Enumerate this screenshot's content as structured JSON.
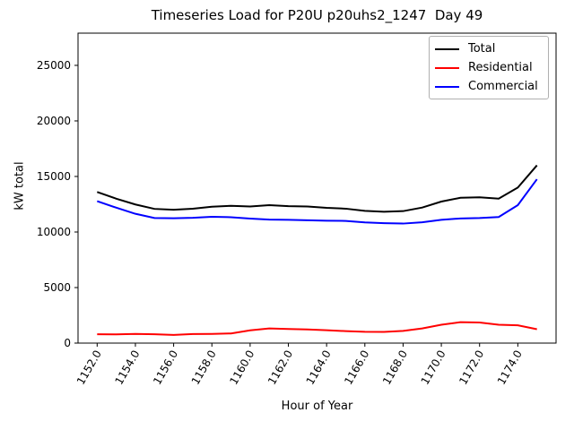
{
  "chart_data": {
    "type": "line",
    "title": "Timeseries Load for P20U p20uhs2_1247  Day 49",
    "xlabel": "Hour of Year",
    "ylabel": "kW total",
    "xlim": [
      1151,
      1176
    ],
    "ylim": [
      0,
      27900
    ],
    "grid": false,
    "legend": {
      "position": "upper right"
    },
    "xticks": {
      "values": [
        1152,
        1154,
        1156,
        1158,
        1160,
        1162,
        1164,
        1166,
        1168,
        1170,
        1172,
        1174
      ],
      "labels": [
        "1152.0",
        "1154.0",
        "1156.0",
        "1158.0",
        "1160.0",
        "1162.0",
        "1164.0",
        "1166.0",
        "1168.0",
        "1170.0",
        "1172.0",
        "1174.0"
      ],
      "rotation": 60
    },
    "yticks": {
      "values": [
        0,
        5000,
        10000,
        15000,
        20000,
        25000
      ],
      "labels": [
        "0",
        "5000",
        "10000",
        "15000",
        "20000",
        "25000"
      ]
    },
    "x": [
      1152,
      1153,
      1154,
      1155,
      1156,
      1157,
      1158,
      1159,
      1160,
      1161,
      1162,
      1163,
      1164,
      1165,
      1166,
      1167,
      1168,
      1169,
      1170,
      1171,
      1172,
      1173,
      1174,
      1175
    ],
    "series": [
      {
        "name": "Total",
        "color": "#000000",
        "values": [
          13600,
          13000,
          12480,
          12080,
          12000,
          12100,
          12280,
          12360,
          12300,
          12420,
          12330,
          12300,
          12180,
          12100,
          11900,
          11820,
          11880,
          12200,
          12740,
          13080,
          13120,
          13000,
          14000,
          16000
        ]
      },
      {
        "name": "Residential",
        "color": "#ff0000",
        "values": [
          800,
          790,
          830,
          800,
          740,
          820,
          830,
          870,
          1150,
          1320,
          1270,
          1230,
          1160,
          1080,
          1020,
          1010,
          1100,
          1320,
          1650,
          1880,
          1850,
          1650,
          1600,
          1250
        ]
      },
      {
        "name": "Commercial",
        "color": "#0000ff",
        "values": [
          12780,
          12190,
          11640,
          11260,
          11240,
          11280,
          11370,
          11330,
          11210,
          11120,
          11100,
          11060,
          11020,
          11000,
          10870,
          10800,
          10760,
          10880,
          11100,
          11220,
          11260,
          11350,
          12420,
          14750
        ]
      }
    ]
  }
}
